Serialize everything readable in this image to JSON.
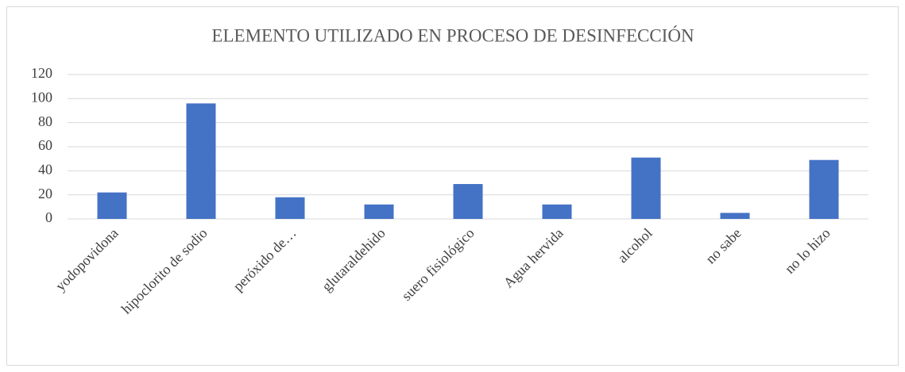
{
  "chart_data": {
    "type": "bar",
    "title": "ELEMENTO UTILIZADO EN PROCESO DE DESINFECCIÓN",
    "categories": [
      "yodopovidona",
      "hipoclorito de sodio",
      "peróxido de…",
      "glutaraldehido",
      "suero fisiológico",
      "Agua hervida",
      "alcohol",
      "no sabe",
      "no lo hizo"
    ],
    "values": [
      22,
      96,
      18,
      12,
      29,
      12,
      51,
      5,
      49
    ],
    "color": "#4472c4",
    "ylim": [
      0,
      120
    ],
    "yticks": [
      0,
      20,
      40,
      60,
      80,
      100,
      120
    ],
    "grid": true
  }
}
